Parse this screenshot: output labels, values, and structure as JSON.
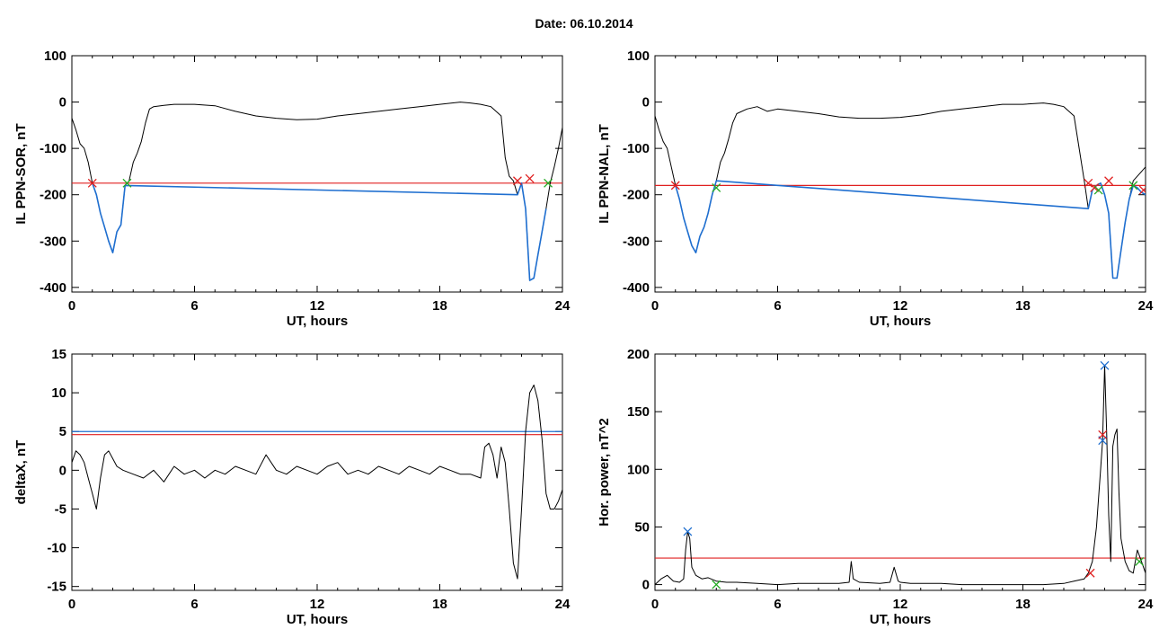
{
  "figure": {
    "title": "Date:  06.10.2014"
  },
  "chart_data": [
    {
      "type": "line",
      "xlabel": "UT, hours",
      "ylabel": "IL PPN-SOR, nT",
      "xlim": [
        0,
        24
      ],
      "ylim": [
        -410,
        100
      ],
      "xticks": [
        0,
        6,
        12,
        18,
        24
      ],
      "yticks": [
        100,
        0,
        -100,
        -200,
        -300,
        -400
      ],
      "series": [
        {
          "color": "#000000",
          "x": [
            0,
            0.2,
            0.4,
            0.6,
            0.8,
            1.0,
            1.2,
            1.4,
            1.6,
            1.8,
            2.0,
            2.2,
            2.4,
            2.6,
            2.8,
            3.0,
            3.2,
            3.4,
            3.6,
            3.8,
            4.0,
            4.5,
            5,
            6,
            7,
            8,
            9,
            10,
            11,
            12,
            13,
            14,
            15,
            16,
            17,
            18,
            19,
            19.5,
            20,
            20.5,
            21,
            21.2,
            21.4,
            21.6,
            21.8,
            22.0,
            22.2,
            22.4,
            22.6,
            22.8,
            23.0,
            23.2,
            23.4,
            23.6,
            23.8,
            24
          ],
          "y": [
            -35,
            -60,
            -90,
            -100,
            -130,
            -175,
            -200,
            -240,
            -270,
            -300,
            -325,
            -280,
            -265,
            -180,
            -170,
            -130,
            -110,
            -85,
            -45,
            -15,
            -10,
            -7,
            -5,
            -5,
            -8,
            -20,
            -30,
            -35,
            -38,
            -37,
            -30,
            -25,
            -20,
            -15,
            -10,
            -5,
            0,
            -2,
            -5,
            -10,
            -30,
            -120,
            -160,
            -170,
            -200,
            -175,
            -230,
            -385,
            -380,
            -330,
            -280,
            -230,
            -175,
            -140,
            -100,
            -55
          ]
        },
        {
          "color": "#1f6fd0",
          "x": [
            1.0,
            1.2,
            1.4,
            1.6,
            1.8,
            2.0,
            2.2,
            2.4,
            2.6,
            21.8,
            22.0,
            22.2,
            22.4,
            22.6,
            22.8,
            23.0,
            23.2
          ],
          "y": [
            -175,
            -200,
            -240,
            -270,
            -300,
            -325,
            -280,
            -265,
            -180,
            -200,
            -175,
            -230,
            -385,
            -380,
            -330,
            -280,
            -230
          ]
        }
      ],
      "hlines": [
        {
          "y": -175,
          "color": "#e02020"
        }
      ],
      "markers": [
        {
          "x": 1.0,
          "y": -175,
          "color": "#e02020"
        },
        {
          "x": 2.7,
          "y": -175,
          "color": "#22aa22"
        },
        {
          "x": 21.8,
          "y": -170,
          "color": "#e02020"
        },
        {
          "x": 22.4,
          "y": -165,
          "color": "#e02020"
        },
        {
          "x": 23.3,
          "y": -175,
          "color": "#22aa22"
        }
      ]
    },
    {
      "type": "line",
      "xlabel": "UT, hours",
      "ylabel": "IL PPN-NAL, nT",
      "xlim": [
        0,
        24
      ],
      "ylim": [
        -410,
        100
      ],
      "xticks": [
        0,
        6,
        12,
        18,
        24
      ],
      "yticks": [
        100,
        0,
        -100,
        -200,
        -300,
        -400
      ],
      "series": [
        {
          "color": "#000000",
          "x": [
            0,
            0.2,
            0.4,
            0.6,
            0.8,
            1.0,
            1.2,
            1.4,
            1.6,
            1.8,
            2.0,
            2.2,
            2.4,
            2.6,
            2.8,
            3.0,
            3.2,
            3.4,
            3.6,
            3.8,
            4.0,
            4.5,
            5,
            5.5,
            6,
            7,
            8,
            9,
            10,
            11,
            12,
            13,
            14,
            15,
            16,
            17,
            18,
            19,
            19.5,
            20,
            20.5,
            21,
            21.2,
            21.4,
            21.6,
            21.8,
            22.0,
            22.2,
            22.4,
            22.6,
            22.8,
            23.0,
            23.2,
            23.4,
            23.6,
            23.8,
            24
          ],
          "y": [
            -30,
            -60,
            -85,
            -100,
            -140,
            -180,
            -210,
            -250,
            -280,
            -310,
            -325,
            -290,
            -270,
            -240,
            -200,
            -170,
            -130,
            -110,
            -80,
            -45,
            -25,
            -15,
            -10,
            -20,
            -15,
            -20,
            -25,
            -32,
            -35,
            -35,
            -33,
            -28,
            -20,
            -15,
            -10,
            -5,
            -5,
            -2,
            -5,
            -10,
            -30,
            -170,
            -230,
            -190,
            -180,
            -175,
            -200,
            -240,
            -380,
            -380,
            -320,
            -260,
            -210,
            -170,
            -160,
            -150,
            -140
          ]
        },
        {
          "color": "#1f6fd0",
          "x": [
            1.0,
            1.2,
            1.4,
            1.6,
            1.8,
            2.0,
            2.2,
            2.4,
            2.6,
            2.8,
            3.0,
            21.2,
            21.4,
            21.6,
            21.8,
            22.0,
            22.2,
            22.4,
            22.6,
            22.8,
            23.0,
            23.2,
            23.4,
            23.6,
            23.8,
            24
          ],
          "y": [
            -180,
            -210,
            -250,
            -280,
            -310,
            -325,
            -290,
            -270,
            -240,
            -200,
            -170,
            -230,
            -190,
            -180,
            -175,
            -200,
            -240,
            -380,
            -380,
            -320,
            -260,
            -210,
            -180,
            -185,
            -195,
            -200
          ]
        }
      ],
      "hlines": [
        {
          "y": -180,
          "color": "#e02020"
        }
      ],
      "markers": [
        {
          "x": 1.0,
          "y": -180,
          "color": "#e02020"
        },
        {
          "x": 3.0,
          "y": -185,
          "color": "#22aa22"
        },
        {
          "x": 21.2,
          "y": -175,
          "color": "#e02020"
        },
        {
          "x": 21.5,
          "y": -185,
          "color": "#e02020"
        },
        {
          "x": 21.7,
          "y": -190,
          "color": "#22aa22"
        },
        {
          "x": 22.2,
          "y": -170,
          "color": "#e02020"
        },
        {
          "x": 23.4,
          "y": -180,
          "color": "#22aa22"
        },
        {
          "x": 23.9,
          "y": -190,
          "color": "#e02020"
        }
      ]
    },
    {
      "type": "line",
      "xlabel": "UT, hours",
      "ylabel": "deltaX, nT",
      "xlim": [
        0,
        24
      ],
      "ylim": [
        -15.5,
        15
      ],
      "xticks": [
        0,
        6,
        12,
        18,
        24
      ],
      "yticks": [
        15,
        10,
        5,
        0,
        -5,
        -10,
        -15
      ],
      "series": [
        {
          "color": "#000000",
          "x": [
            0,
            0.2,
            0.4,
            0.6,
            0.8,
            1.0,
            1.2,
            1.4,
            1.6,
            1.8,
            2.0,
            2.2,
            2.5,
            3,
            3.5,
            4,
            4.5,
            5,
            5.5,
            6,
            6.5,
            7,
            7.5,
            8,
            8.5,
            9,
            9.5,
            10,
            10.5,
            11,
            11.5,
            12,
            12.5,
            13,
            13.5,
            14,
            14.5,
            15,
            15.5,
            16,
            16.5,
            17,
            17.5,
            18,
            18.5,
            19,
            19.5,
            20,
            20.2,
            20.4,
            20.6,
            20.8,
            21.0,
            21.2,
            21.4,
            21.6,
            21.8,
            22.0,
            22.2,
            22.4,
            22.6,
            22.8,
            23.0,
            23.2,
            23.4,
            23.6,
            23.8,
            24
          ],
          "y": [
            1,
            2.5,
            2,
            1,
            -1,
            -3,
            -5,
            -1,
            2,
            2.5,
            1.5,
            0.5,
            0,
            -0.5,
            -1,
            0,
            -1.5,
            0.5,
            -0.5,
            0,
            -1,
            0,
            -0.5,
            0.5,
            0,
            -0.5,
            2,
            0,
            -0.5,
            0.5,
            0,
            -0.5,
            0.5,
            1,
            -0.5,
            0,
            -0.5,
            0.5,
            0,
            -0.5,
            0.5,
            0,
            -0.5,
            0.5,
            0,
            -0.5,
            -0.5,
            -1,
            3,
            3.5,
            2,
            -1,
            3,
            1,
            -5,
            -12,
            -14,
            -5,
            5,
            10,
            11,
            9,
            4,
            -3,
            -5,
            -5,
            -4,
            -2.5
          ]
        }
      ],
      "hlines": [
        {
          "y": 4.6,
          "color": "#e02020"
        },
        {
          "y": 5.0,
          "color": "#1f6fd0"
        }
      ],
      "markers": []
    },
    {
      "type": "line",
      "xlabel": "UT, hours",
      "ylabel": "Hor. power, nT^2",
      "xlim": [
        0,
        24
      ],
      "ylim": [
        -5,
        200
      ],
      "xticks": [
        0,
        6,
        12,
        18,
        24
      ],
      "yticks": [
        200,
        150,
        100,
        50,
        0
      ],
      "series": [
        {
          "color": "#000000",
          "x": [
            0,
            0.3,
            0.6,
            0.9,
            1.2,
            1.4,
            1.5,
            1.6,
            1.7,
            1.8,
            2.0,
            2.3,
            2.6,
            3.0,
            3.5,
            4,
            5,
            6,
            7,
            8,
            9,
            9.5,
            9.6,
            9.7,
            10,
            11,
            11.5,
            11.7,
            11.9,
            12,
            12.5,
            13,
            14,
            15,
            16,
            17,
            18,
            19,
            20,
            20.5,
            21.0,
            21.2,
            21.4,
            21.6,
            21.8,
            21.9,
            22.0,
            22.1,
            22.2,
            22.3,
            22.4,
            22.5,
            22.6,
            22.7,
            22.8,
            23.0,
            23.2,
            23.4,
            23.6,
            23.8,
            24
          ],
          "y": [
            0,
            5,
            8,
            3,
            2,
            5,
            30,
            46,
            40,
            15,
            8,
            5,
            6,
            3,
            2,
            2,
            1,
            0,
            1,
            1,
            1,
            2,
            20,
            5,
            2,
            1,
            2,
            15,
            3,
            2,
            1,
            1,
            1,
            0,
            0,
            0,
            0,
            0,
            1,
            3,
            5,
            10,
            20,
            50,
            100,
            125,
            190,
            130,
            60,
            20,
            120,
            130,
            135,
            80,
            40,
            20,
            12,
            10,
            30,
            20,
            10
          ]
        }
      ],
      "hlines": [
        {
          "y": 23,
          "color": "#e02020"
        }
      ],
      "markers": [
        {
          "x": 1.6,
          "y": 46,
          "color": "#1f6fd0"
        },
        {
          "x": 3.0,
          "y": 0,
          "color": "#22aa22"
        },
        {
          "x": 21.3,
          "y": 10,
          "color": "#e02020"
        },
        {
          "x": 21.9,
          "y": 125,
          "color": "#1f6fd0"
        },
        {
          "x": 21.9,
          "y": 130,
          "color": "#e02020"
        },
        {
          "x": 22.0,
          "y": 190,
          "color": "#1f6fd0"
        },
        {
          "x": 23.7,
          "y": 20,
          "color": "#22aa22"
        }
      ]
    }
  ]
}
